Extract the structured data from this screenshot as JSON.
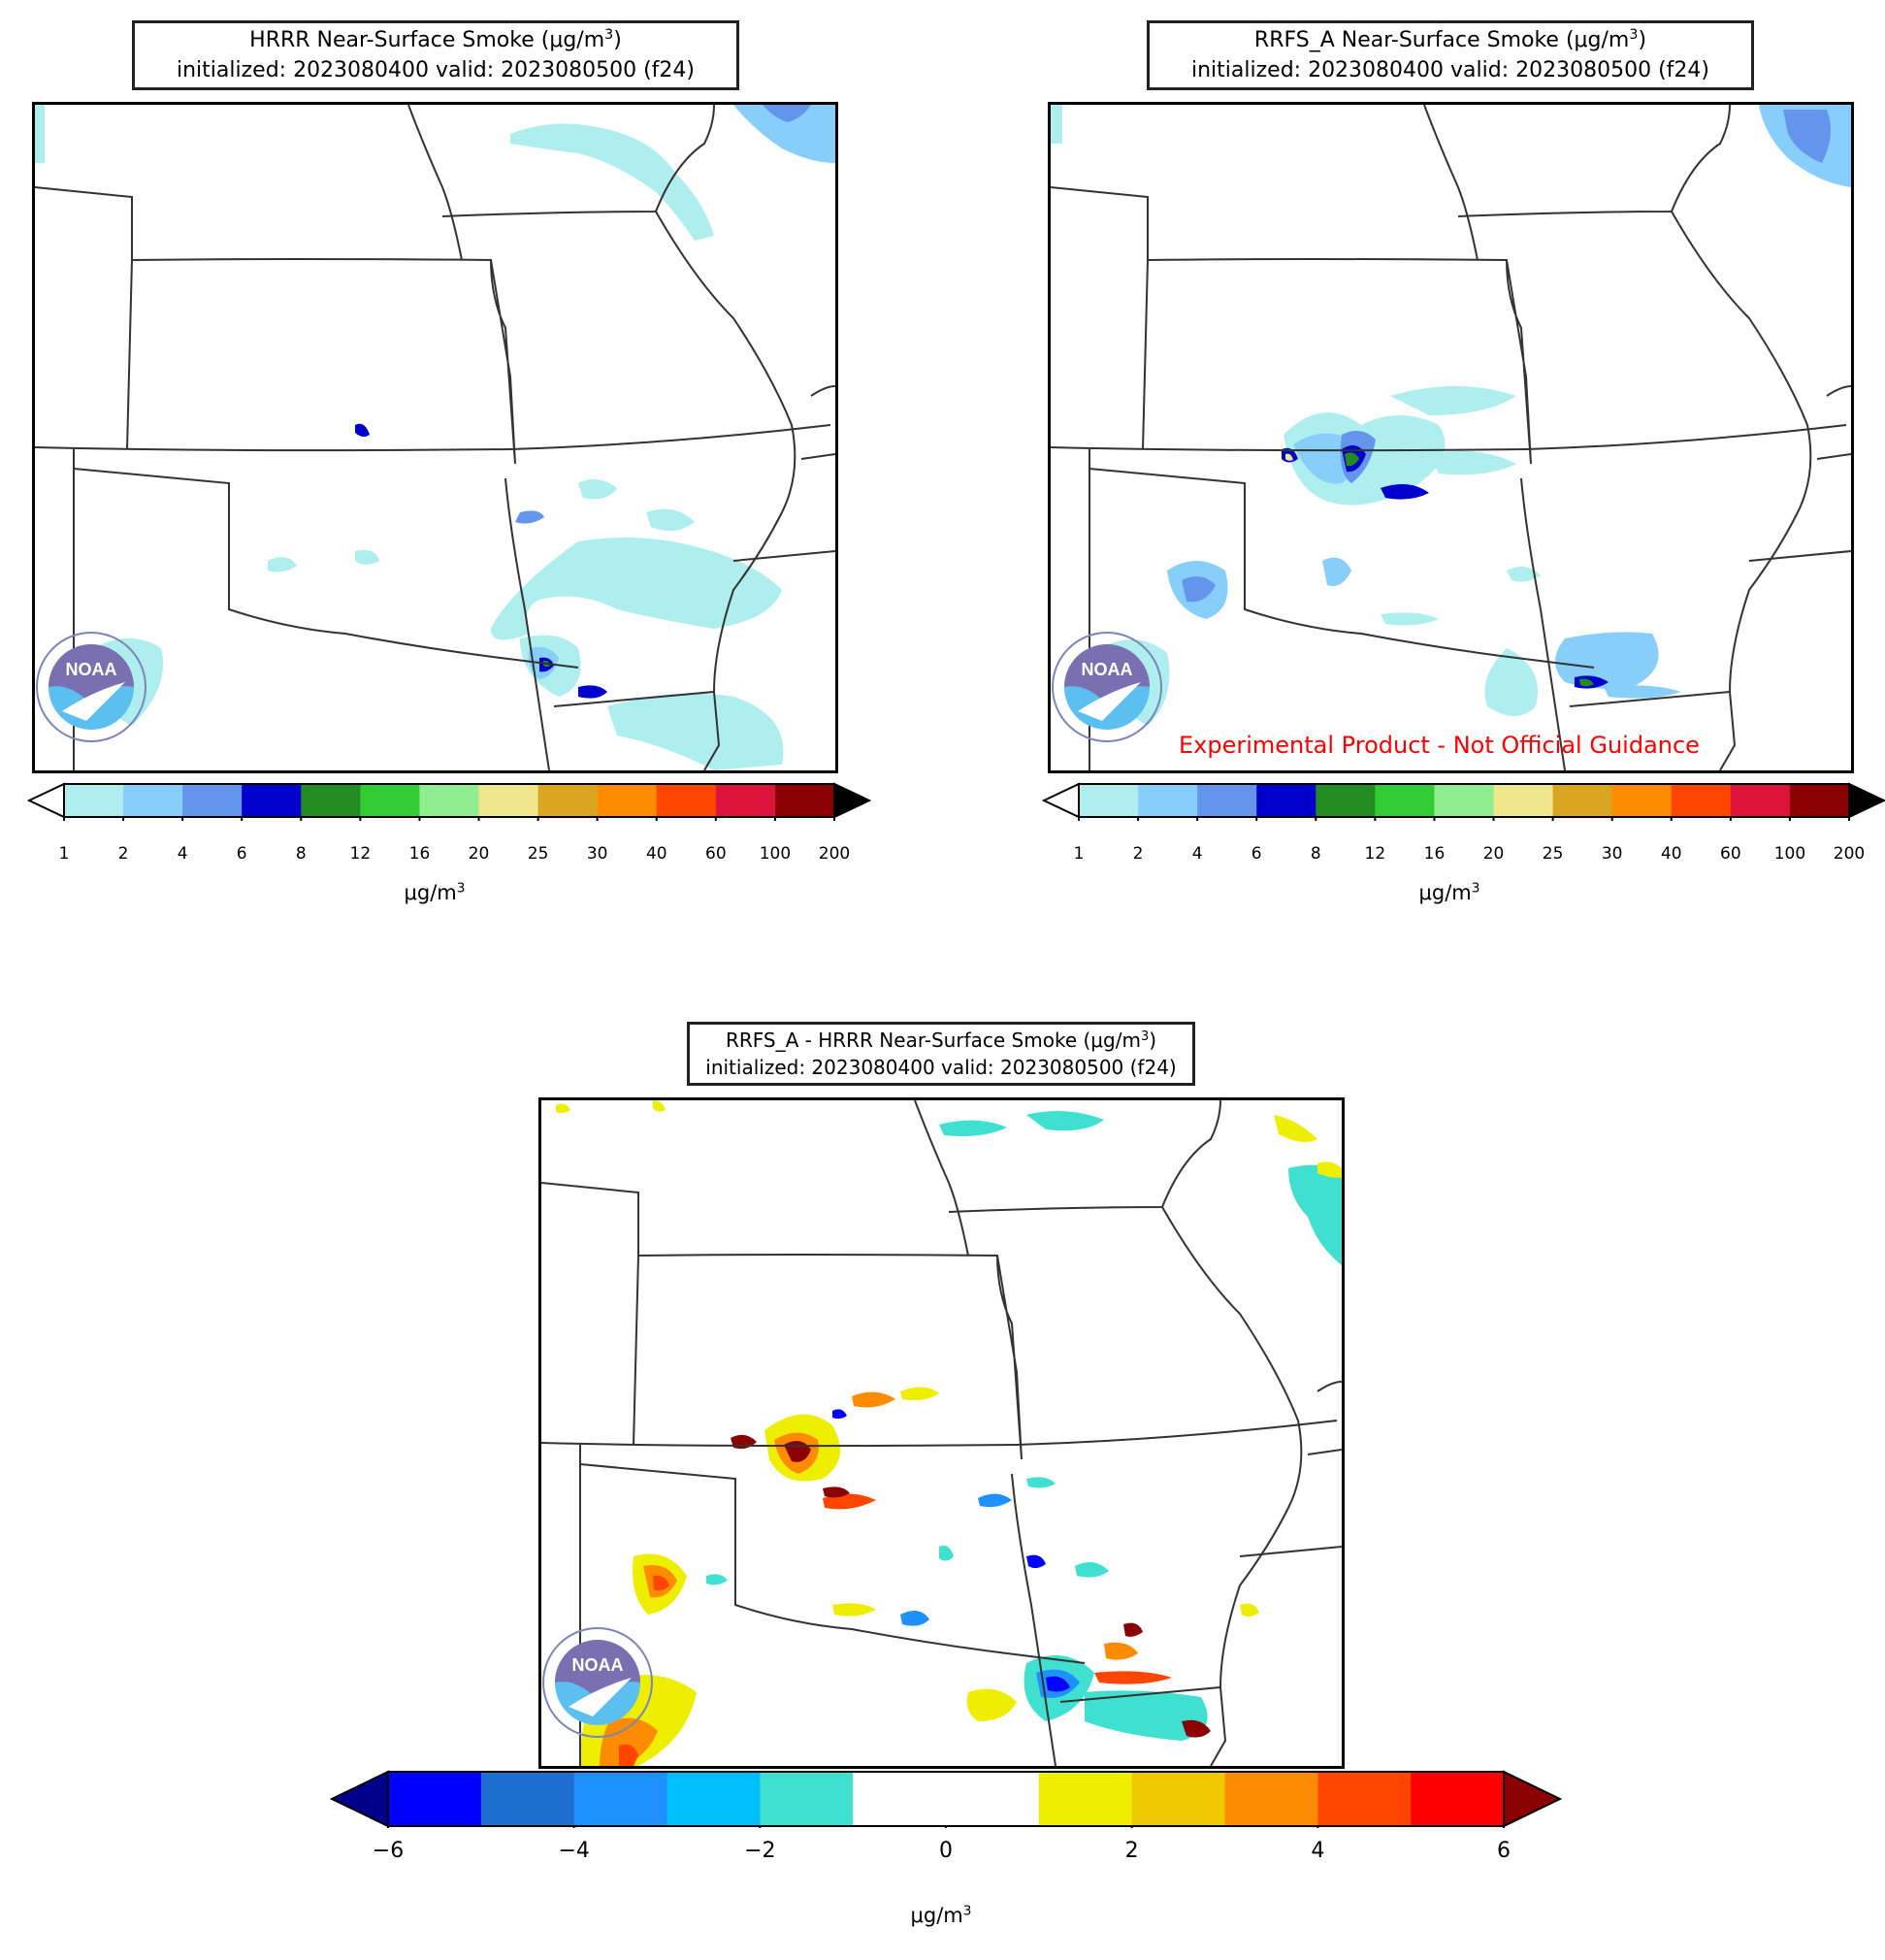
{
  "panels": [
    {
      "id": "hrrr",
      "title_line1_pre": "HRRR Near-Surface Smoke (μg/m",
      "title_sup": "3",
      "title_line1_post": ")",
      "title_line2": "initialized: 2023080400 valid: 2023080500 (f24)",
      "logo_text": "NOAA",
      "watermark": "",
      "unit_pre": "μg/m",
      "unit_sup": "3"
    },
    {
      "id": "rrfs",
      "title_line1_pre": "RRFS_A Near-Surface Smoke (μg/m",
      "title_sup": "3",
      "title_line1_post": ")",
      "title_line2": "initialized: 2023080400 valid: 2023080500 (f24)",
      "logo_text": "NOAA",
      "watermark": "Experimental Product - Not Official Guidance",
      "unit_pre": "μg/m",
      "unit_sup": "3"
    },
    {
      "id": "diff",
      "title_line1_pre": "RRFS_A - HRRR Near-Surface Smoke (μg/m",
      "title_sup": "3",
      "title_line1_post": ")",
      "title_line2": "initialized: 2023080400 valid: 2023080500 (f24)",
      "logo_text": "NOAA",
      "watermark": "",
      "unit_pre": "μg/m",
      "unit_sup": "3"
    }
  ],
  "smoke_colorbar": {
    "ticks": [
      "1",
      "2",
      "4",
      "6",
      "8",
      "12",
      "16",
      "20",
      "25",
      "30",
      "40",
      "60",
      "100",
      "200"
    ],
    "colors": [
      "#aeeeee",
      "#87cefa",
      "#6495ed",
      "#0000cd",
      "#228b22",
      "#32cd32",
      "#90ee90",
      "#f0e68c",
      "#daa520",
      "#ff8c00",
      "#ff4500",
      "#dc143c",
      "#8b0000"
    ],
    "under_color": "#ffffff",
    "over_color": "#000000"
  },
  "diff_colorbar": {
    "ticks": [
      "−6",
      "−4",
      "−2",
      "0",
      "2",
      "4",
      "6"
    ],
    "colors": [
      "#0000ff",
      "#1e6ecf",
      "#1e90ff",
      "#00bfff",
      "#40e0d0",
      "#ffffff",
      "#ffffff",
      "#eeee00",
      "#eec900",
      "#ff8c00",
      "#ff4500",
      "#ff0000"
    ],
    "under_color": "#00008b",
    "over_color": "#8b0000"
  },
  "map_colors": {
    "border": "#333333",
    "smoke_light": "#aeeeee",
    "smoke_sky": "#87cefa",
    "smoke_mid": "#6495ed",
    "smoke_dark": "#0000cd",
    "smoke_green": "#228b22",
    "diff_pos_low": "#eeee00",
    "diff_pos_mid": "#ff8c00",
    "diff_pos_high": "#8b0000",
    "diff_neg_low": "#40e0d0",
    "diff_neg_mid": "#1e90ff",
    "diff_neg_high": "#0000ff"
  }
}
